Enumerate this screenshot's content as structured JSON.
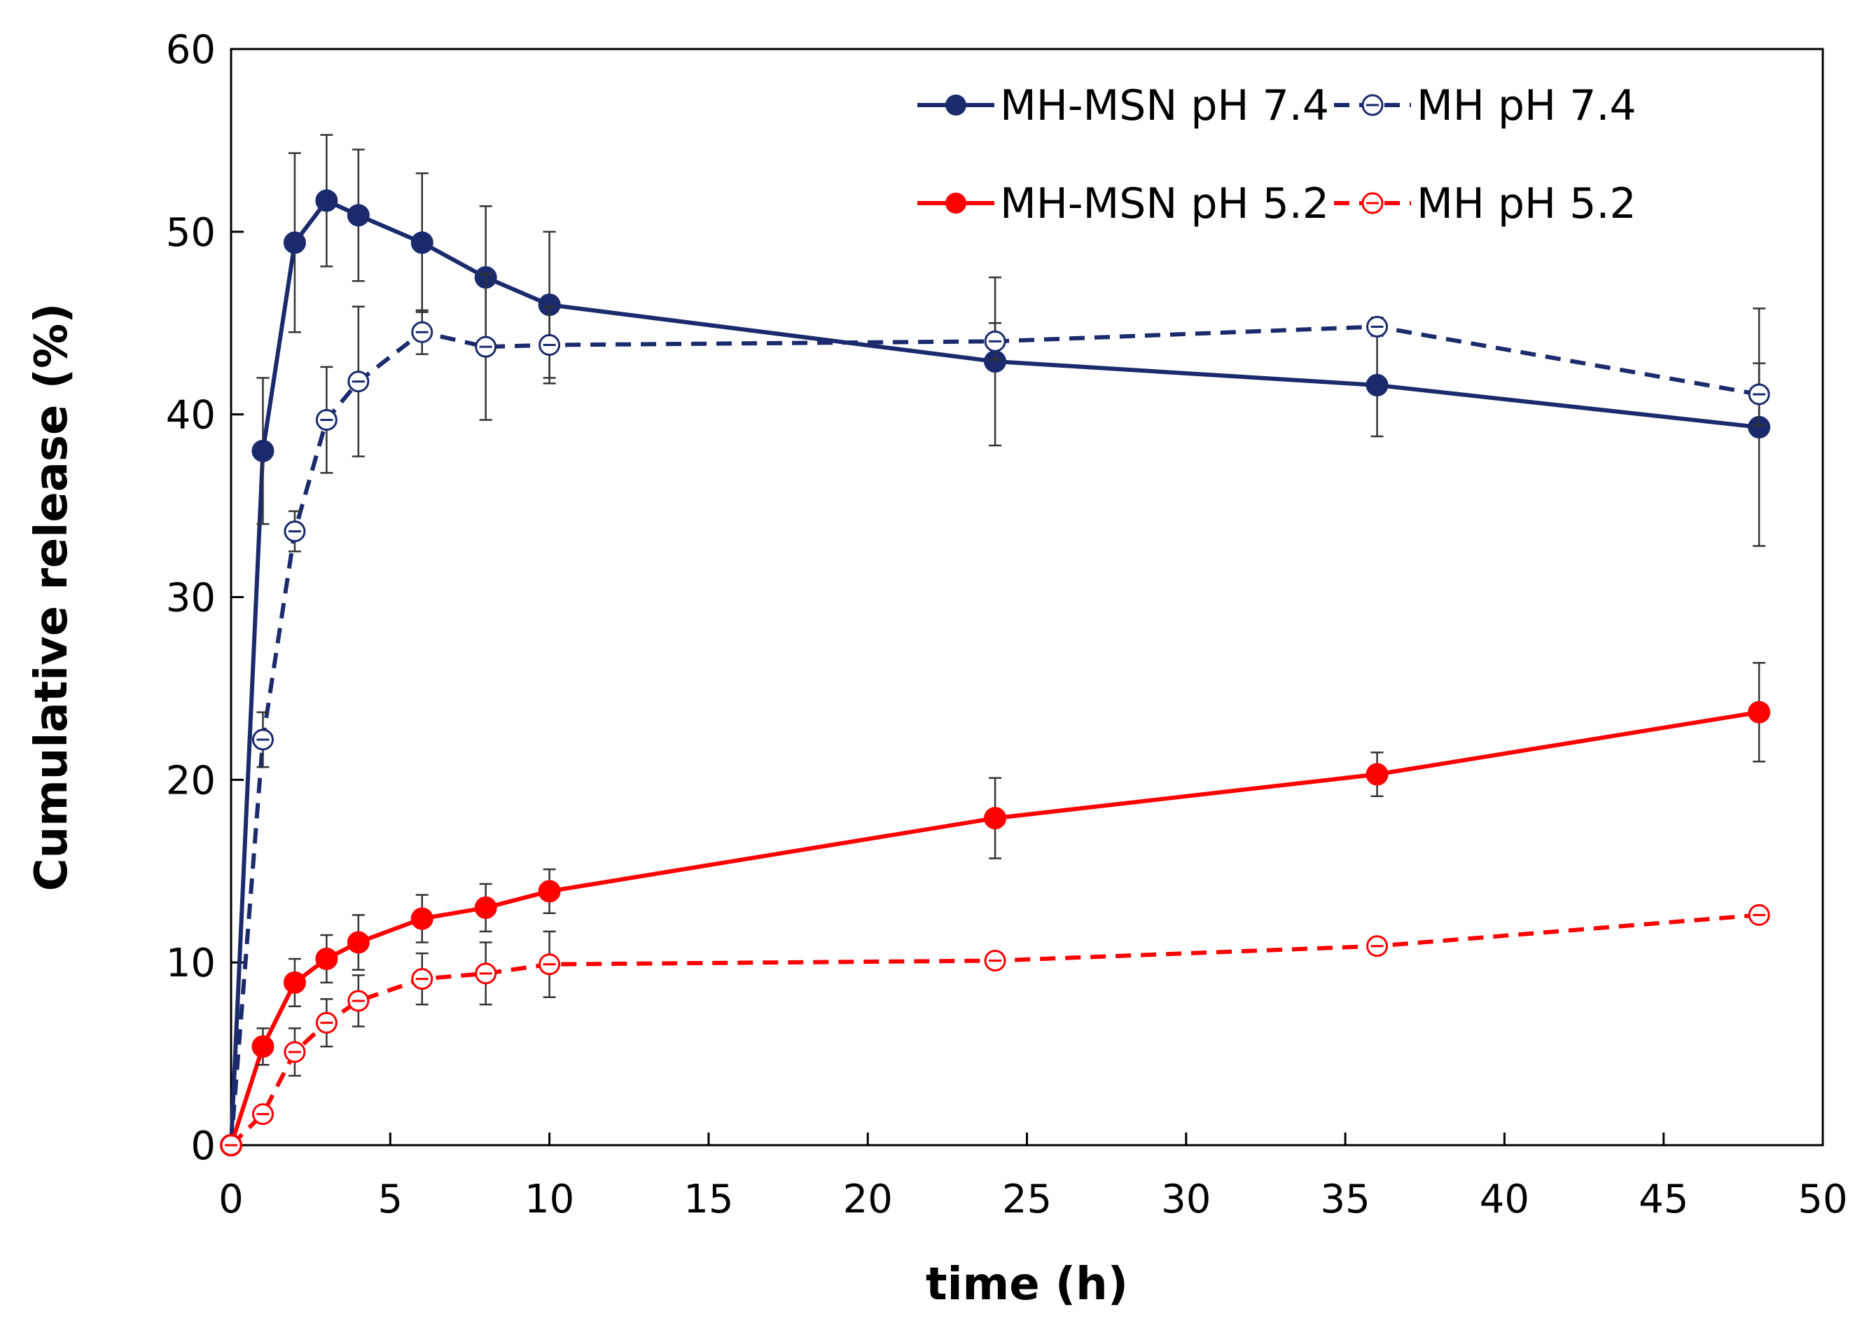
{
  "chart_data": {
    "type": "line",
    "title": "",
    "xlabel": "time (h)",
    "ylabel": "Cumulative release (%)",
    "xlim": [
      0,
      50
    ],
    "ylim": [
      0,
      60
    ],
    "xticks": [
      0,
      5,
      10,
      15,
      20,
      25,
      30,
      35,
      40,
      45,
      50
    ],
    "yticks": [
      0,
      10,
      20,
      30,
      40,
      50,
      60
    ],
    "grid": false,
    "legend_position": "top-right",
    "x": [
      0,
      1,
      2,
      3,
      4,
      6,
      8,
      10,
      24,
      36,
      48
    ],
    "series": [
      {
        "name": "MH-MSN pH 7.4",
        "color": "#1a2a6c",
        "line_style": "solid",
        "marker": "filled-circle",
        "values": [
          0,
          38.0,
          49.4,
          51.7,
          50.9,
          49.4,
          47.5,
          46.0,
          42.9,
          41.6,
          39.3
        ],
        "errors": [
          0,
          4.0,
          4.9,
          3.6,
          3.6,
          3.8,
          3.9,
          4.0,
          4.6,
          2.8,
          6.5
        ]
      },
      {
        "name": "MH pH 7.4",
        "color": "#1a2a6c",
        "line_style": "dashed",
        "marker": "open-circle",
        "values": [
          0,
          22.2,
          33.6,
          39.7,
          41.8,
          44.5,
          43.7,
          43.8,
          44.0,
          44.8,
          41.1
        ],
        "errors": [
          0,
          1.5,
          1.1,
          2.9,
          4.1,
          1.2,
          4.0,
          2.1,
          1.0,
          0.5,
          1.7
        ]
      },
      {
        "name": "MH-MSN pH 5.2",
        "color": "#ff0000",
        "line_style": "solid",
        "marker": "filled-circle",
        "values": [
          0,
          5.4,
          8.9,
          10.2,
          11.1,
          12.4,
          13.0,
          13.9,
          17.9,
          20.3,
          23.7
        ],
        "errors": [
          0,
          1.0,
          1.3,
          1.3,
          1.5,
          1.3,
          1.3,
          1.2,
          2.2,
          1.2,
          2.7
        ]
      },
      {
        "name": "MH pH 5.2",
        "color": "#ff0000",
        "line_style": "dashed",
        "marker": "open-circle",
        "values": [
          0,
          1.7,
          5.1,
          6.7,
          7.9,
          9.1,
          9.4,
          9.9,
          10.1,
          10.9,
          12.6
        ],
        "errors": [
          0,
          0.3,
          1.3,
          1.3,
          1.4,
          1.4,
          1.7,
          1.8,
          0.2,
          0.3,
          0.3
        ]
      }
    ]
  }
}
